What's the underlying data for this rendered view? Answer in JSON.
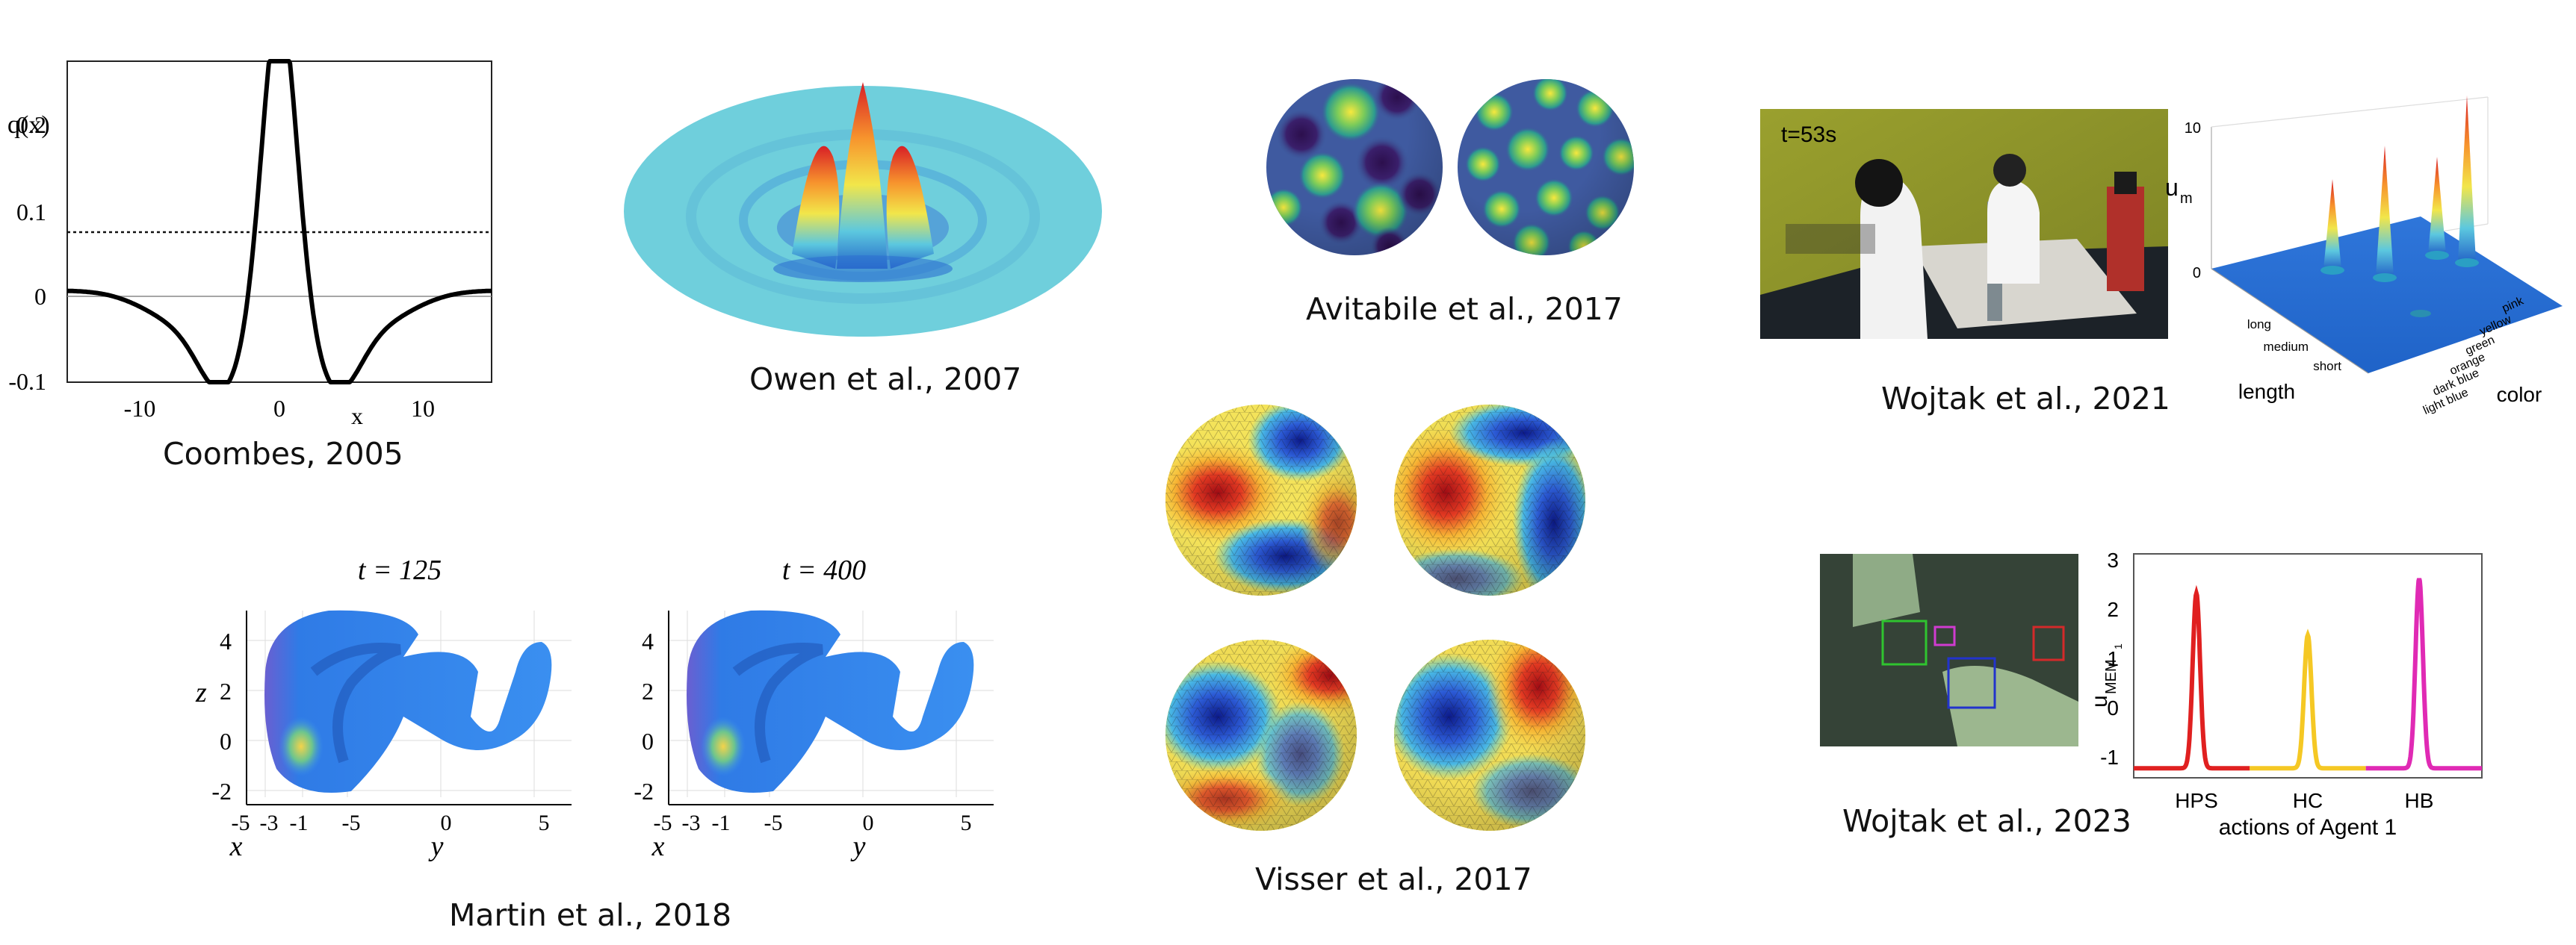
{
  "captions": {
    "coombes": "Coombes, 2005",
    "owen": "Owen et al., 2007",
    "avitabile": "Avitabile et al., 2017",
    "wojtak2021": "Wojtak et al., 2021",
    "martin": "Martin et al., 2018",
    "visser": "Visser et al., 2017",
    "wojtak2023": "Wojtak et al., 2023"
  },
  "coombes_plot": {
    "ylabel": "q(x)",
    "xlabel": "x",
    "yticks": [
      "0.2",
      "0.1",
      "0",
      "-0.1"
    ],
    "xticks": [
      "-10",
      "0",
      "10"
    ],
    "chart_data": {
      "type": "line",
      "xlim": [
        -16,
        16
      ],
      "ylim": [
        -0.1,
        0.25
      ],
      "threshold": 0.075,
      "series": [
        {
          "x": [
            -16,
            -12,
            -8,
            -6,
            -5,
            -4,
            -3,
            -2,
            -1,
            0,
            1,
            2,
            3,
            4,
            5,
            6,
            8,
            12,
            16
          ],
          "y": [
            -0.001,
            -0.008,
            -0.035,
            -0.06,
            -0.075,
            -0.08,
            -0.062,
            0.0,
            0.12,
            0.245,
            0.12,
            0.0,
            -0.062,
            -0.08,
            -0.075,
            -0.06,
            -0.035,
            -0.008,
            -0.001
          ]
        }
      ]
    }
  },
  "martin": {
    "title_left": "t = 125",
    "title_right": "t = 400",
    "zlabel": "z",
    "xlabel": "x",
    "ylabel": "y",
    "zticks": [
      "4",
      "2",
      "0",
      "-2"
    ],
    "xticks": [
      "-5",
      "-3",
      "-1"
    ],
    "yticks": [
      "-5",
      "0",
      "5"
    ]
  },
  "wojtak2021": {
    "photo_time": "t=53s",
    "zlabel": "u",
    "zlabel_sub": "m",
    "zticks": [
      "10",
      "0"
    ],
    "length_label": "length",
    "length_ticks": [
      "long",
      "medium",
      "short"
    ],
    "color_label": "color",
    "color_ticks": [
      "light blue",
      "dark blue",
      "orange",
      "green",
      "yellow",
      "pink"
    ]
  },
  "wojtak2023": {
    "ylabel": "u",
    "ylabel_sub": "MEM",
    "ylabel_sub2": "1",
    "xlabel": "actions of Agent 1",
    "yticks": [
      "3",
      "2",
      "1",
      "0",
      "-1"
    ],
    "xticks": [
      "HPS",
      "HC",
      "HB"
    ],
    "chart_data": {
      "type": "line",
      "ylim": [
        -1.7,
        3
      ],
      "baseline": -1.2,
      "series": [
        {
          "name_hidden": true,
          "color": "#e02020",
          "peak_x": 0.18,
          "peak": 2.35
        },
        {
          "name_hidden": true,
          "color": "#f5c824",
          "peak_x": 0.5,
          "peak": 1.5
        },
        {
          "name_hidden": true,
          "color": "#e02ab4",
          "peak_x": 0.82,
          "peak": 2.65
        }
      ]
    }
  }
}
